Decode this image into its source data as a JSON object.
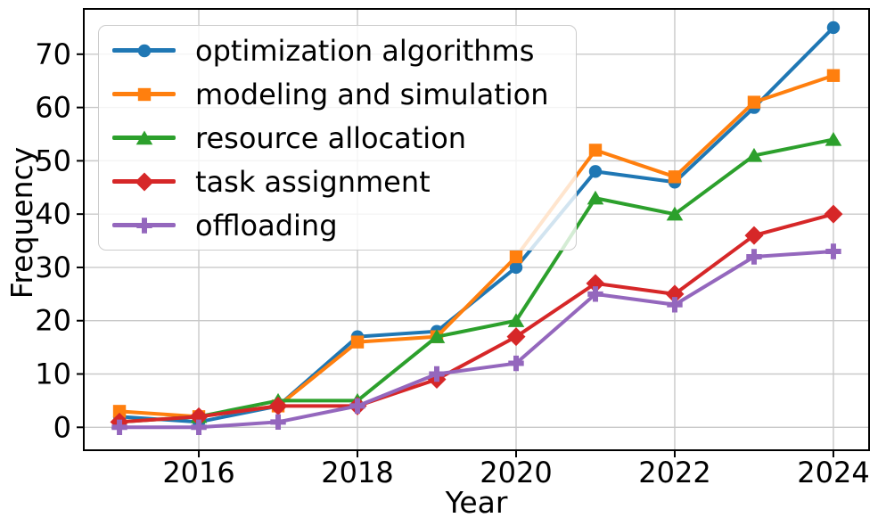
{
  "figure": {
    "background": "#ffffff",
    "text_color": "#000000",
    "axis_color": "#000000",
    "grid_color": "#c9c9c9"
  },
  "chart_data": {
    "type": "line",
    "title": "",
    "xlabel": "Year",
    "ylabel": "Frequency",
    "x": [
      2015,
      2016,
      2017,
      2018,
      2019,
      2020,
      2021,
      2022,
      2023,
      2024
    ],
    "xlim": [
      2014.55,
      2024.45
    ],
    "ylim": [
      -4.3,
      78.5
    ],
    "xtick_values": [
      2016,
      2018,
      2020,
      2022,
      2024
    ],
    "xtick_labels": [
      "2016",
      "2018",
      "2020",
      "2022",
      "2024"
    ],
    "ytick_values": [
      0,
      10,
      20,
      30,
      40,
      50,
      60,
      70
    ],
    "ytick_labels": [
      "0",
      "10",
      "20",
      "30",
      "40",
      "50",
      "60",
      "70"
    ],
    "grid": true,
    "legend_position": "upper-left",
    "series": [
      {
        "name": "optimization algorithms",
        "color": "#1f77b4",
        "marker": "circle",
        "values": [
          2,
          1,
          4,
          17,
          18,
          30,
          48,
          46,
          60,
          75
        ]
      },
      {
        "name": "modeling and simulation",
        "color": "#ff7f0e",
        "marker": "square",
        "values": [
          3,
          2,
          4,
          16,
          17,
          32,
          52,
          47,
          61,
          66
        ]
      },
      {
        "name": "resource allocation",
        "color": "#2ca02c",
        "marker": "triangle",
        "values": [
          1,
          2,
          5,
          5,
          17,
          20,
          43,
          40,
          51,
          54
        ]
      },
      {
        "name": "task assignment",
        "color": "#d62728",
        "marker": "diamond",
        "values": [
          1,
          2,
          4,
          4,
          9,
          17,
          27,
          25,
          36,
          40
        ]
      },
      {
        "name": "offloading",
        "color": "#9467bd",
        "marker": "plus",
        "values": [
          0,
          0,
          1,
          4,
          10,
          12,
          25,
          23,
          32,
          33
        ]
      }
    ]
  }
}
